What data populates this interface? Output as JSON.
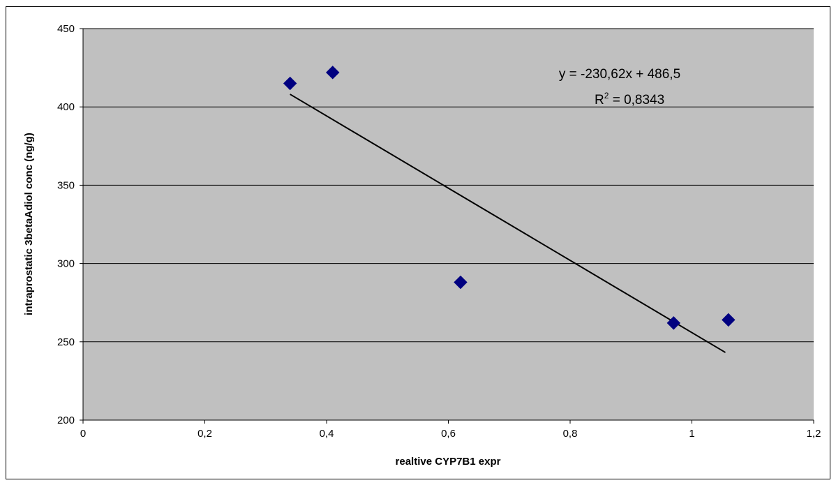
{
  "chart_data": {
    "type": "scatter",
    "title": "",
    "xlabel": "realtive CYP7B1 expr",
    "ylabel": "intraprostatic 3betaAdiol conc (ng/g)",
    "xlim": [
      0,
      1.2
    ],
    "ylim": [
      200,
      450
    ],
    "x_ticks": [
      "0",
      "0,2",
      "0,4",
      "0,6",
      "0,8",
      "1",
      "1,2"
    ],
    "y_ticks": [
      "200",
      "250",
      "300",
      "350",
      "400",
      "450"
    ],
    "grid": "horizontal",
    "plot_background": "#c0c0c0",
    "marker_color": "#000080",
    "marker": "diamond",
    "series": [
      {
        "x": [
          0.34,
          0.41,
          0.62,
          0.97,
          1.06
        ],
        "y": [
          415,
          422,
          288,
          262,
          264
        ]
      }
    ],
    "trendline": {
      "type": "linear",
      "slope": -230.62,
      "intercept": 486.5,
      "x_range": [
        0.34,
        1.055
      ],
      "equation_text": "y = -230,62x + 486,5",
      "r2_prefix": "R",
      "r2_exp": "2",
      "r2_suffix": " = 0,8343"
    }
  }
}
